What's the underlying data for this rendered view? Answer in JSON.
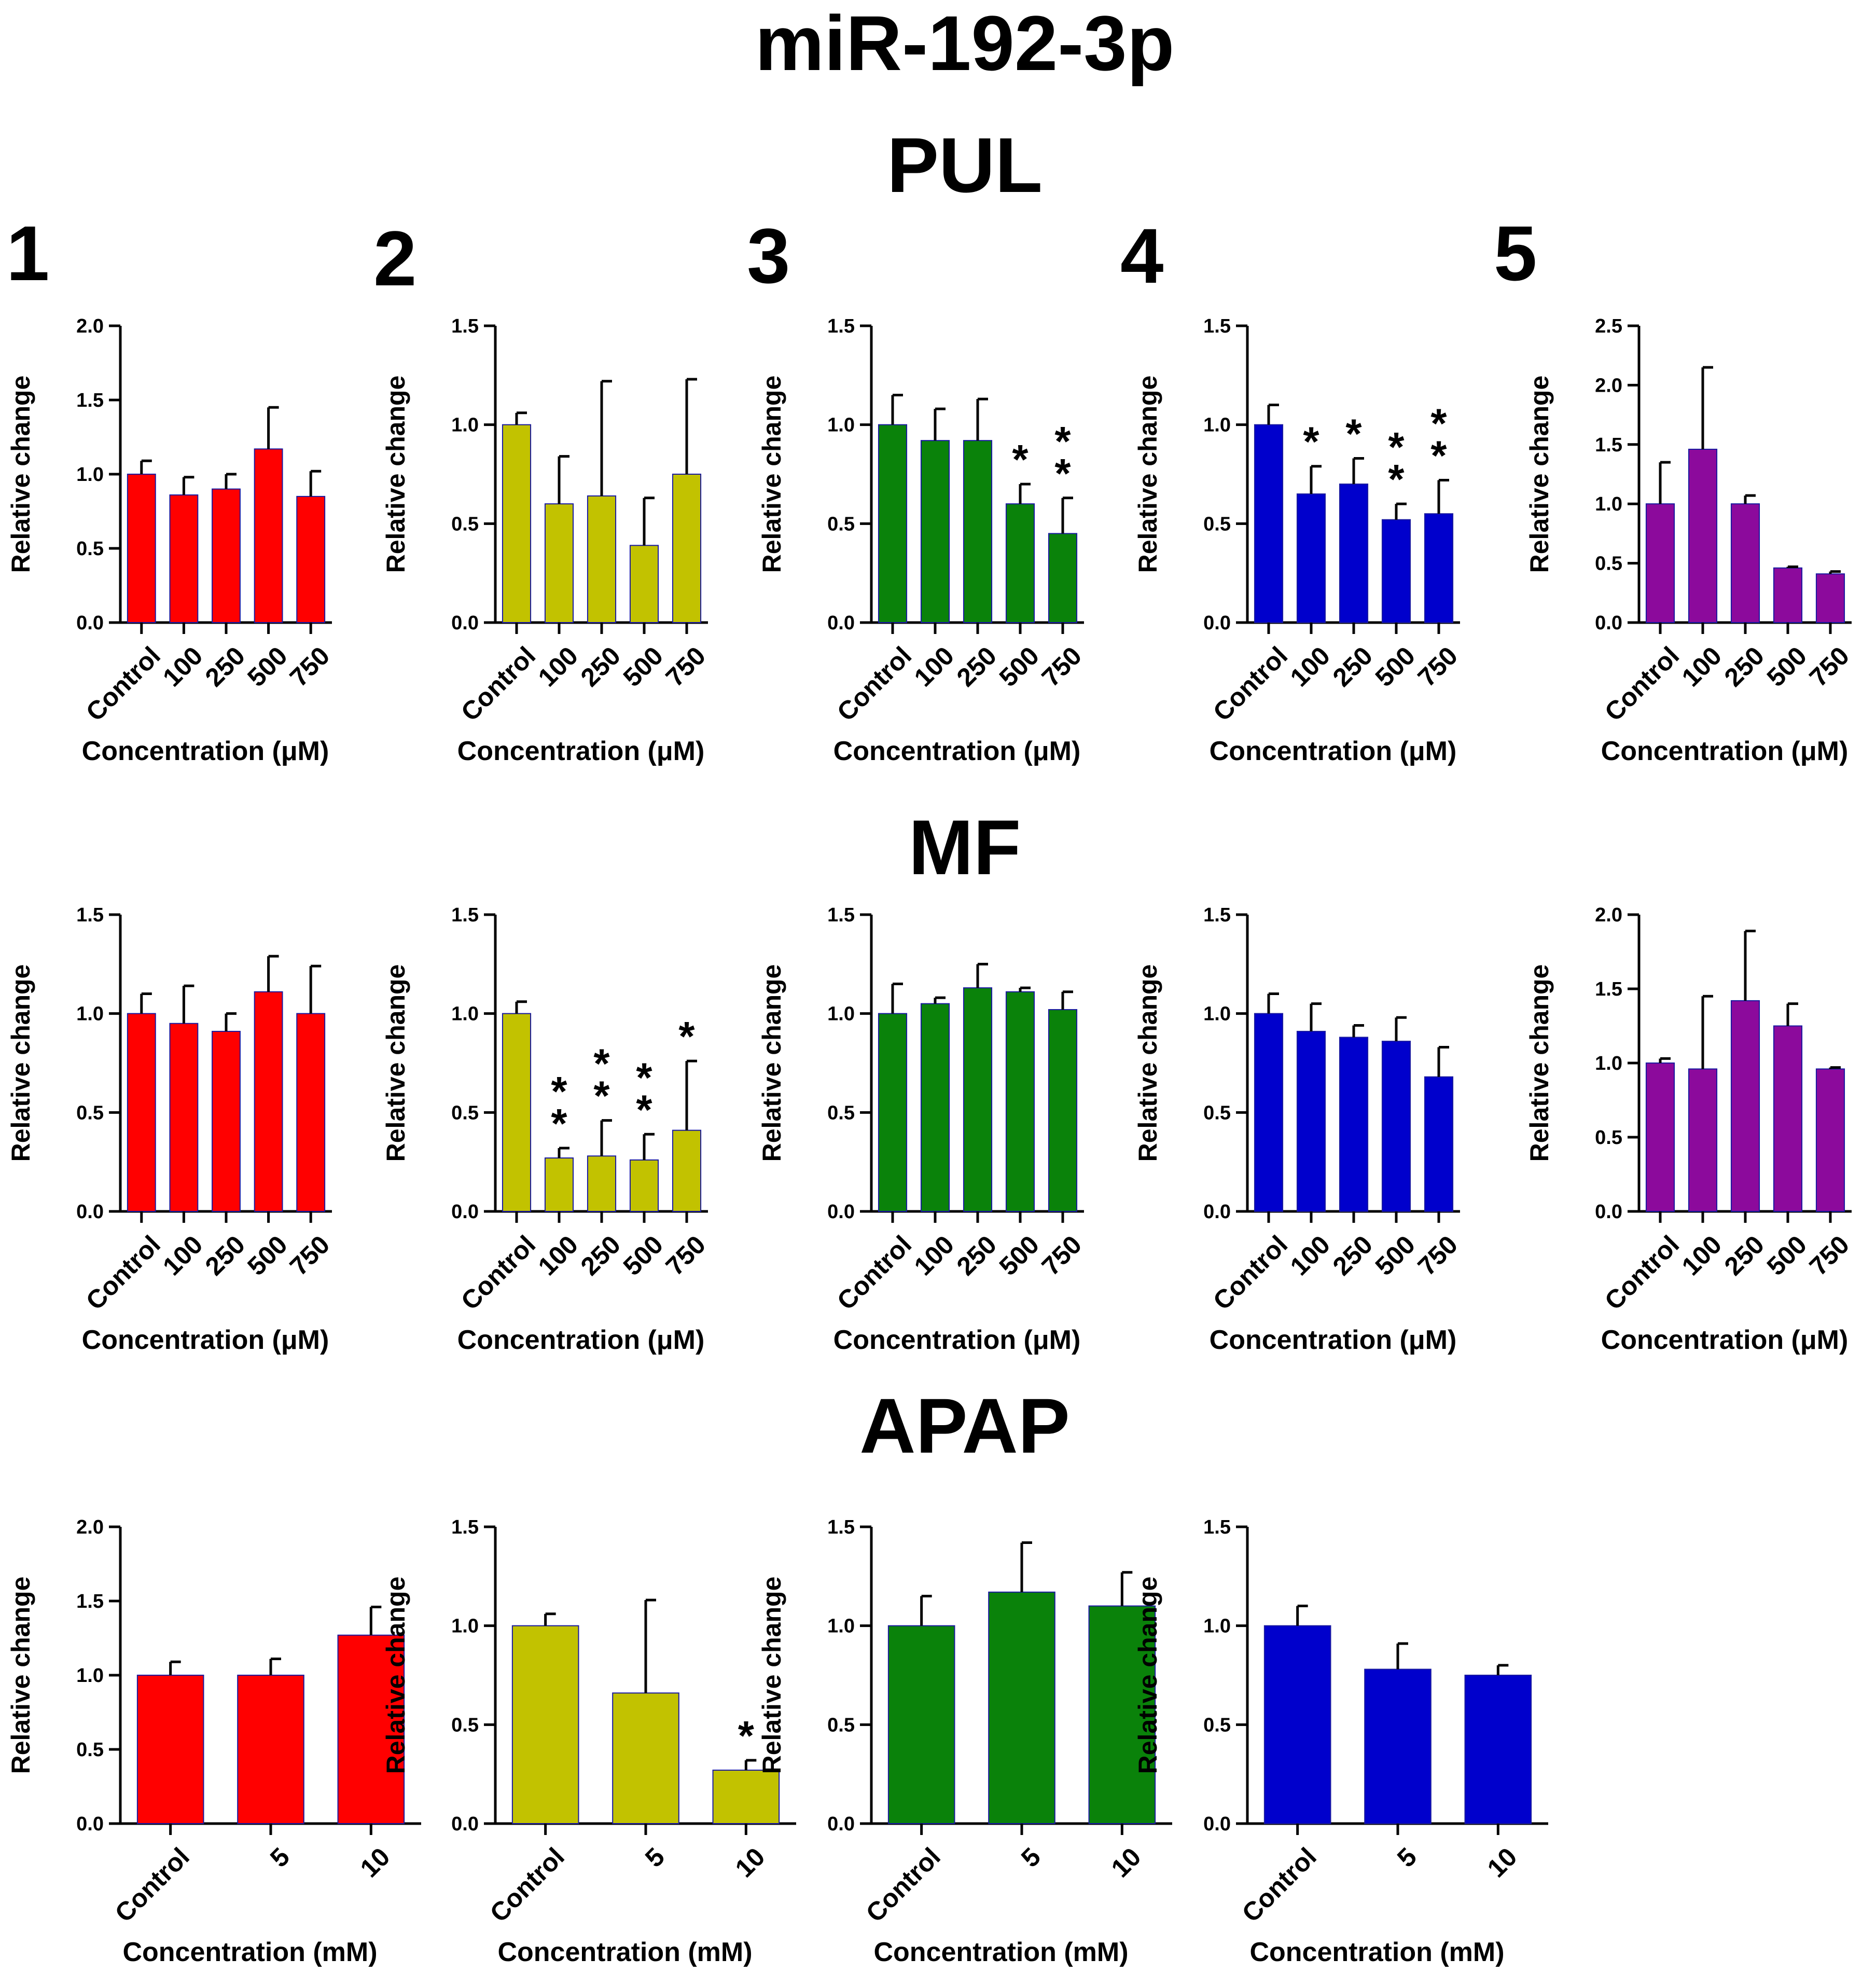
{
  "figure": {
    "main_title": "miR-192-3p",
    "section_titles": [
      "PUL",
      "MF",
      "APAP"
    ],
    "panel_numbers": [
      "1",
      "2",
      "3",
      "4",
      "5"
    ]
  },
  "colors": {
    "series": [
      "#ff0000",
      "#c2c200",
      "#0a820a",
      "#0000cc",
      "#8c0a9c"
    ],
    "axis": "#000000"
  },
  "chart_data": [
    {
      "type": "bar",
      "section": "PUL",
      "panel": 1,
      "color_index": 0,
      "categories": [
        "Control",
        "100",
        "250",
        "500",
        "750"
      ],
      "values": [
        1.0,
        0.86,
        0.9,
        1.17,
        0.85
      ],
      "errors": [
        0.09,
        0.12,
        0.1,
        0.28,
        0.17
      ],
      "significance": [
        "",
        "",
        "",
        "",
        ""
      ],
      "ylim": [
        0,
        2.0
      ],
      "yticks": [
        "0.0",
        "0.5",
        "1.0",
        "1.5",
        "2.0"
      ],
      "xlabel": "Concentration (μM)",
      "ylabel": "Relative change"
    },
    {
      "type": "bar",
      "section": "PUL",
      "panel": 2,
      "color_index": 1,
      "categories": [
        "Control",
        "100",
        "250",
        "500",
        "750"
      ],
      "values": [
        1.0,
        0.6,
        0.64,
        0.39,
        0.75
      ],
      "errors": [
        0.06,
        0.24,
        0.58,
        0.24,
        0.48
      ],
      "significance": [
        "",
        "",
        "",
        "",
        ""
      ],
      "ylim": [
        0,
        1.5
      ],
      "yticks": [
        "0.0",
        "0.5",
        "1.0",
        "1.5"
      ],
      "xlabel": "Concentration (μM)",
      "ylabel": "Relative change"
    },
    {
      "type": "bar",
      "section": "PUL",
      "panel": 3,
      "color_index": 2,
      "categories": [
        "Control",
        "100",
        "250",
        "500",
        "750"
      ],
      "values": [
        1.0,
        0.92,
        0.92,
        0.6,
        0.45
      ],
      "errors": [
        0.15,
        0.16,
        0.21,
        0.1,
        0.18
      ],
      "significance": [
        "",
        "",
        "",
        "*",
        "**"
      ],
      "ylim": [
        0,
        1.5
      ],
      "yticks": [
        "0.0",
        "0.5",
        "1.0",
        "1.5"
      ],
      "xlabel": "Concentration (μM)",
      "ylabel": "Relative change"
    },
    {
      "type": "bar",
      "section": "PUL",
      "panel": 4,
      "color_index": 3,
      "categories": [
        "Control",
        "100",
        "250",
        "500",
        "750"
      ],
      "values": [
        1.0,
        0.65,
        0.7,
        0.52,
        0.55
      ],
      "errors": [
        0.1,
        0.14,
        0.13,
        0.08,
        0.17
      ],
      "significance": [
        "",
        "*",
        "*",
        "**",
        "**"
      ],
      "ylim": [
        0,
        1.5
      ],
      "yticks": [
        "0.0",
        "0.5",
        "1.0",
        "1.5"
      ],
      "xlabel": "Concentration (μM)",
      "ylabel": "Relative change"
    },
    {
      "type": "bar",
      "section": "PUL",
      "panel": 5,
      "color_index": 4,
      "categories": [
        "Control",
        "100",
        "250",
        "500",
        "750"
      ],
      "values": [
        1.0,
        1.46,
        1.0,
        0.46,
        0.41
      ],
      "errors": [
        0.35,
        0.69,
        0.07,
        0.01,
        0.02
      ],
      "significance": [
        "",
        "",
        "",
        "",
        ""
      ],
      "ylim": [
        0,
        2.5
      ],
      "yticks": [
        "0.0",
        "0.5",
        "1.0",
        "1.5",
        "2.0",
        "2.5"
      ],
      "xlabel": "Concentration (μM)",
      "ylabel": "Relative change"
    },
    {
      "type": "bar",
      "section": "MF",
      "panel": 1,
      "color_index": 0,
      "categories": [
        "Control",
        "100",
        "250",
        "500",
        "750"
      ],
      "values": [
        1.0,
        0.95,
        0.91,
        1.11,
        1.0
      ],
      "errors": [
        0.1,
        0.19,
        0.09,
        0.18,
        0.24
      ],
      "significance": [
        "",
        "",
        "",
        "",
        ""
      ],
      "ylim": [
        0,
        1.5
      ],
      "yticks": [
        "0.0",
        "0.5",
        "1.0",
        "1.5"
      ],
      "xlabel": "Concentration (μM)",
      "ylabel": "Relative change"
    },
    {
      "type": "bar",
      "section": "MF",
      "panel": 2,
      "color_index": 1,
      "categories": [
        "Control",
        "100",
        "250",
        "500",
        "750"
      ],
      "values": [
        1.0,
        0.27,
        0.28,
        0.26,
        0.41
      ],
      "errors": [
        0.06,
        0.05,
        0.18,
        0.13,
        0.35
      ],
      "significance": [
        "",
        "**",
        "**",
        "**",
        "*"
      ],
      "ylim": [
        0,
        1.5
      ],
      "yticks": [
        "0.0",
        "0.5",
        "1.0",
        "1.5"
      ],
      "xlabel": "Concentration (μM)",
      "ylabel": "Relative change"
    },
    {
      "type": "bar",
      "section": "MF",
      "panel": 3,
      "color_index": 2,
      "categories": [
        "Control",
        "100",
        "250",
        "500",
        "750"
      ],
      "values": [
        1.0,
        1.05,
        1.13,
        1.11,
        1.02
      ],
      "errors": [
        0.15,
        0.03,
        0.12,
        0.02,
        0.09
      ],
      "significance": [
        "",
        "",
        "",
        "",
        ""
      ],
      "ylim": [
        0,
        1.5
      ],
      "yticks": [
        "0.0",
        "0.5",
        "1.0",
        "1.5"
      ],
      "xlabel": "Concentration (μM)",
      "ylabel": "Relative change"
    },
    {
      "type": "bar",
      "section": "MF",
      "panel": 4,
      "color_index": 3,
      "categories": [
        "Control",
        "100",
        "250",
        "500",
        "750"
      ],
      "values": [
        1.0,
        0.91,
        0.88,
        0.86,
        0.68
      ],
      "errors": [
        0.1,
        0.14,
        0.06,
        0.12,
        0.15
      ],
      "significance": [
        "",
        "",
        "",
        "",
        ""
      ],
      "ylim": [
        0,
        1.5
      ],
      "yticks": [
        "0.0",
        "0.5",
        "1.0",
        "1.5"
      ],
      "xlabel": "Concentration (μM)",
      "ylabel": "Relative change"
    },
    {
      "type": "bar",
      "section": "MF",
      "panel": 5,
      "color_index": 4,
      "categories": [
        "Control",
        "100",
        "250",
        "500",
        "750"
      ],
      "values": [
        1.0,
        0.96,
        1.42,
        1.25,
        0.96
      ],
      "errors": [
        0.03,
        0.49,
        0.47,
        0.15,
        0.01
      ],
      "significance": [
        "",
        "",
        "",
        "",
        ""
      ],
      "ylim": [
        0,
        2.0
      ],
      "yticks": [
        "0.0",
        "0.5",
        "1.0",
        "1.5",
        "2.0"
      ],
      "xlabel": "Concentration (μM)",
      "ylabel": "Relative change"
    },
    {
      "type": "bar",
      "section": "APAP",
      "panel": 1,
      "color_index": 0,
      "categories": [
        "Control",
        "5",
        "10"
      ],
      "values": [
        1.0,
        1.0,
        1.27
      ],
      "errors": [
        0.09,
        0.11,
        0.19
      ],
      "significance": [
        "",
        "",
        ""
      ],
      "ylim": [
        0,
        2.0
      ],
      "yticks": [
        "0.0",
        "0.5",
        "1.0",
        "1.5",
        "2.0"
      ],
      "xlabel": "Concentration (mM)",
      "ylabel": "Relative change"
    },
    {
      "type": "bar",
      "section": "APAP",
      "panel": 2,
      "color_index": 1,
      "categories": [
        "Control",
        "5",
        "10"
      ],
      "values": [
        1.0,
        0.66,
        0.27
      ],
      "errors": [
        0.06,
        0.47,
        0.05
      ],
      "significance": [
        "",
        "",
        "*"
      ],
      "ylim": [
        0,
        1.5
      ],
      "yticks": [
        "0.0",
        "0.5",
        "1.0",
        "1.5"
      ],
      "xlabel": "Concentration (mM)",
      "ylabel": "Relative change"
    },
    {
      "type": "bar",
      "section": "APAP",
      "panel": 3,
      "color_index": 2,
      "categories": [
        "Control",
        "5",
        "10"
      ],
      "values": [
        1.0,
        1.17,
        1.1
      ],
      "errors": [
        0.15,
        0.25,
        0.17
      ],
      "significance": [
        "",
        "",
        ""
      ],
      "ylim": [
        0,
        1.5
      ],
      "yticks": [
        "0.0",
        "0.5",
        "1.0",
        "1.5"
      ],
      "xlabel": "Concentration (mM)",
      "ylabel": "Relative change"
    },
    {
      "type": "bar",
      "section": "APAP",
      "panel": 4,
      "color_index": 3,
      "categories": [
        "Control",
        "5",
        "10"
      ],
      "values": [
        1.0,
        0.78,
        0.75
      ],
      "errors": [
        0.1,
        0.13,
        0.05
      ],
      "significance": [
        "",
        "",
        ""
      ],
      "ylim": [
        0,
        1.5
      ],
      "yticks": [
        "0.0",
        "0.5",
        "1.0",
        "1.5"
      ],
      "xlabel": "Concentration (mM)",
      "ylabel": "Relative change"
    }
  ]
}
